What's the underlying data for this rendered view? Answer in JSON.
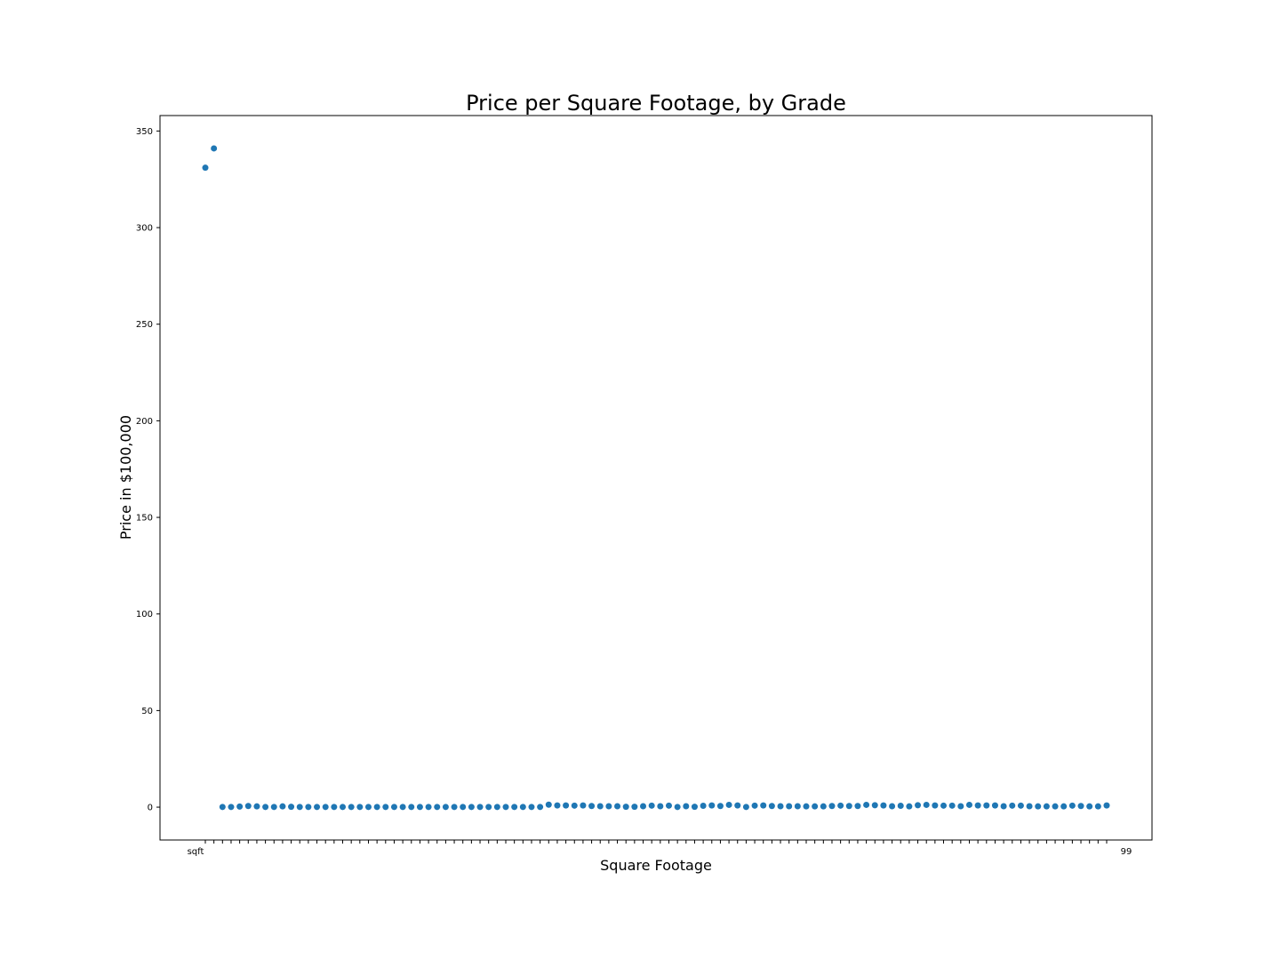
{
  "chart_data": {
    "type": "scatter",
    "title": "Price per Square Footage, by Grade",
    "xlabel": "Square Footage",
    "ylabel": "Price in $100,000",
    "ylim": [
      -17,
      358
    ],
    "yticks": [
      0,
      50,
      100,
      150,
      200,
      250,
      300,
      350
    ],
    "grid": false,
    "marker_color": "#1f77b4",
    "x_first_label": "sqft",
    "x_last_label": "99",
    "n_points": 105,
    "series": [
      {
        "values": [
          331,
          341,
          0.1,
          0.1,
          0.3,
          0.6,
          0.4,
          0.1,
          0.1,
          0.4,
          0.2,
          0.1,
          0.1,
          0.1,
          0.1,
          0.1,
          0.1,
          0.1,
          0.1,
          0.1,
          0.1,
          0.1,
          0.1,
          0.1,
          0.1,
          0.1,
          0.1,
          0.1,
          0.1,
          0.1,
          0.1,
          0.1,
          0.1,
          0.1,
          0.1,
          0.1,
          0.1,
          0.1,
          0.1,
          0.1,
          1.3,
          0.9,
          0.9,
          0.8,
          0.9,
          0.6,
          0.5,
          0.5,
          0.5,
          0.2,
          0.2,
          0.5,
          0.8,
          0.5,
          0.8,
          0.1,
          0.5,
          0.2,
          0.7,
          0.9,
          0.6,
          1.2,
          0.9,
          0.1,
          0.8,
          0.9,
          0.6,
          0.5,
          0.5,
          0.5,
          0.4,
          0.4,
          0.4,
          0.6,
          0.8,
          0.6,
          0.6,
          1.2,
          1.0,
          0.9,
          0.5,
          0.7,
          0.4,
          1.0,
          1.2,
          0.9,
          0.8,
          0.8,
          0.5,
          1.2,
          0.9,
          0.9,
          0.9,
          0.5,
          0.8,
          0.8,
          0.5,
          0.4,
          0.4,
          0.4,
          0.4,
          0.8,
          0.6,
          0.4,
          0.4,
          0.9
        ]
      }
    ]
  }
}
